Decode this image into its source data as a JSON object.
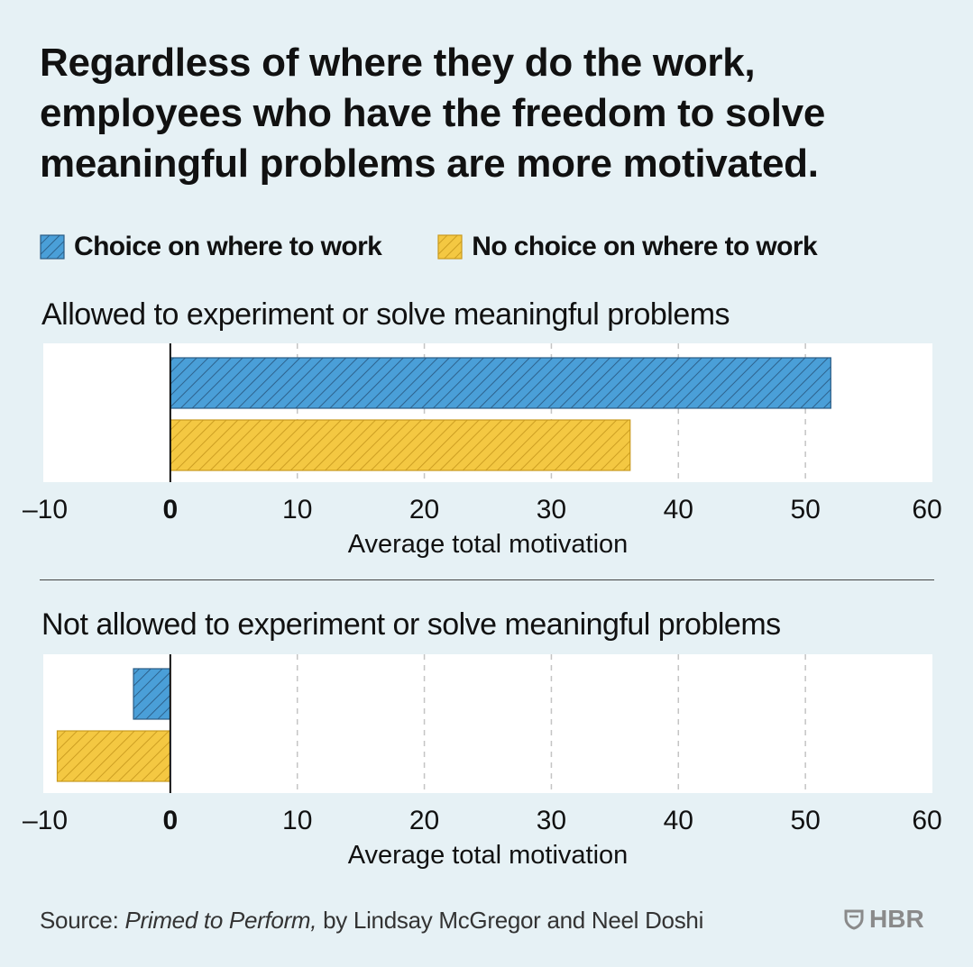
{
  "title": "Regardless of where they do the work, employees who have the freedom to solve meaningful problems are more motivated.",
  "legend": [
    {
      "label": "Choice on where to work",
      "color": "#4a9fd8"
    },
    {
      "label": "No choice on where to work",
      "color": "#f4c842"
    }
  ],
  "chart_data": [
    {
      "type": "bar",
      "orientation": "horizontal",
      "title": "Allowed to experiment or solve meaningful problems",
      "xlabel": "Average total motivation",
      "xlim": [
        -10,
        60
      ],
      "xticks": [
        "–10",
        "0",
        "10",
        "20",
        "30",
        "40",
        "50",
        "60"
      ],
      "series": [
        {
          "name": "Choice on where to work",
          "values": [
            52
          ]
        },
        {
          "name": "No choice on where to work",
          "values": [
            36.2
          ]
        }
      ]
    },
    {
      "type": "bar",
      "orientation": "horizontal",
      "title": "Not allowed to experiment or solve meaningful problems",
      "xlabel": "Average total motivation",
      "xlim": [
        -10,
        60
      ],
      "xticks": [
        "–10",
        "0",
        "10",
        "20",
        "30",
        "40",
        "50",
        "60"
      ],
      "series": [
        {
          "name": "Choice on where to work",
          "values": [
            -2.9
          ]
        },
        {
          "name": "No choice on where to work",
          "values": [
            -8.9
          ]
        }
      ]
    }
  ],
  "source": {
    "prefix": "Source: ",
    "book": "Primed to Perform,",
    "suffix": " by Lindsay McGregor and Neel Doshi"
  },
  "logo": "HBR"
}
